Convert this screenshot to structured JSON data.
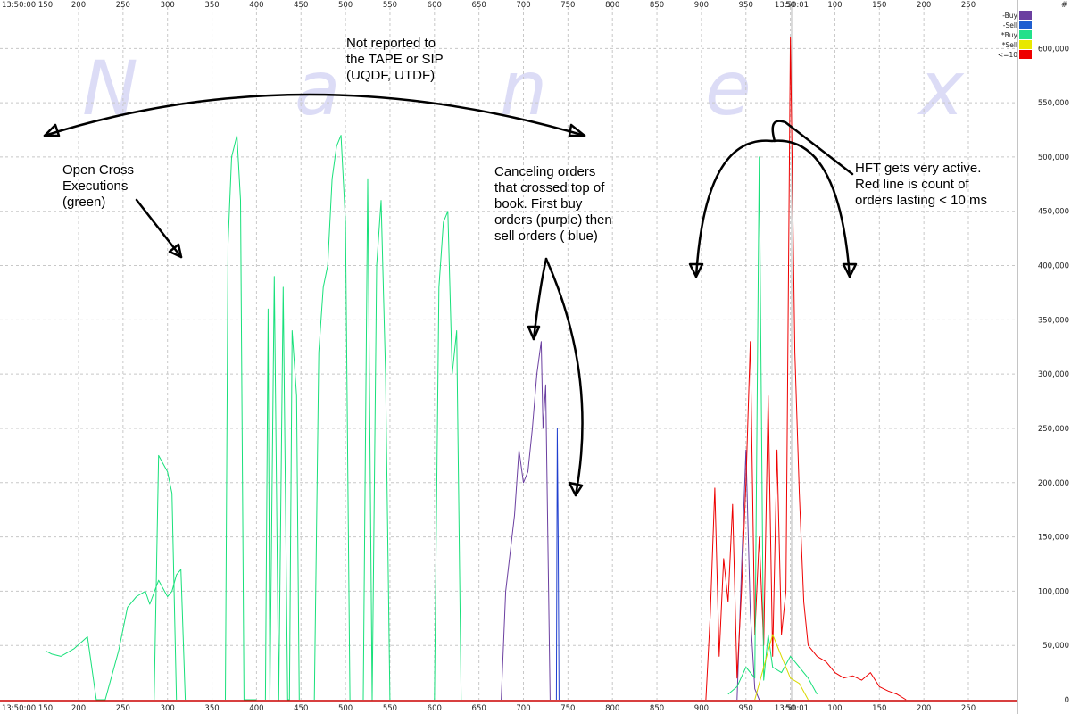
{
  "chart_data": {
    "type": "line",
    "watermark": [
      "N",
      "a",
      "n",
      "e",
      "x"
    ],
    "time_corner_left": "13:50:00.150",
    "time_center": "13:50:01",
    "x_ticks": [
      "200",
      "250",
      "300",
      "350",
      "400",
      "450",
      "500",
      "550",
      "600",
      "650",
      "700",
      "750",
      "800",
      "850",
      "900",
      "950",
      "50",
      "100",
      "150",
      "200",
      "250"
    ],
    "y_axis_header": "#",
    "ylim": [
      0,
      620000
    ],
    "y_ticks": [
      {
        "v": 0,
        "label": "0"
      },
      {
        "v": 50000,
        "label": "50,000"
      },
      {
        "v": 100000,
        "label": "100,000"
      },
      {
        "v": 150000,
        "label": "150,000"
      },
      {
        "v": 200000,
        "label": "200,000"
      },
      {
        "v": 250000,
        "label": "250,000"
      },
      {
        "v": 300000,
        "label": "300,000"
      },
      {
        "v": 350000,
        "label": "350,000"
      },
      {
        "v": 400000,
        "label": "400,000"
      },
      {
        "v": 450000,
        "label": "450,000"
      },
      {
        "v": 500000,
        "label": "500,000"
      },
      {
        "v": 550000,
        "label": "550,000"
      },
      {
        "v": 600000,
        "label": "600,000"
      }
    ],
    "legend": [
      {
        "label": "-Buy",
        "color": "#6b3fa0"
      },
      {
        "label": "-Sell",
        "color": "#1f5fd0"
      },
      {
        "label": "*Buy",
        "color": "#22e08a"
      },
      {
        "label": "*Sell",
        "color": "#e8e800"
      },
      {
        "label": "<=10",
        "color": "#ee0000"
      }
    ],
    "grid": true,
    "legend_position": "top-right",
    "colors": {
      "green": "#18e07a",
      "purple": "#6b3fa0",
      "blue": "#1f3fcf",
      "red": "#ee0000",
      "yellow": "#d8d800",
      "grid": "#c8c8c8"
    },
    "series": [
      {
        "color_key": "green",
        "x": [
          163,
          170,
          180,
          195,
          210,
          220,
          230,
          245,
          255,
          265,
          275,
          280,
          290,
          300,
          305,
          310,
          315,
          320
        ],
        "y": [
          45000,
          42000,
          40000,
          47000,
          58000,
          0,
          0,
          45000,
          85000,
          95000,
          100000,
          88000,
          110000,
          95000,
          100000,
          115000,
          120000,
          0
        ]
      },
      {
        "color_key": "green",
        "x": [
          285,
          290,
          300,
          305,
          310
        ],
        "y": [
          0,
          225000,
          210000,
          190000,
          0
        ]
      },
      {
        "color_key": "green",
        "x": [
          365,
          368,
          372,
          378,
          382,
          386,
          388,
          392,
          396,
          400
        ],
        "y": [
          0,
          420000,
          500000,
          520000,
          460000,
          0,
          0,
          0,
          0,
          0
        ]
      },
      {
        "color_key": "green",
        "x": [
          410,
          413,
          415,
          420,
          425,
          430,
          435,
          437,
          440,
          445,
          448
        ],
        "y": [
          0,
          360000,
          0,
          390000,
          0,
          380000,
          0,
          0,
          340000,
          280000,
          0
        ]
      },
      {
        "color_key": "green",
        "x": [
          465,
          470,
          475,
          480,
          485,
          490,
          495,
          500,
          505
        ],
        "y": [
          0,
          320000,
          380000,
          400000,
          480000,
          510000,
          520000,
          440000,
          0
        ]
      },
      {
        "color_key": "green",
        "x": [
          520,
          525,
          530,
          535,
          540,
          545,
          550
        ],
        "y": [
          0,
          480000,
          0,
          400000,
          460000,
          300000,
          0
        ]
      },
      {
        "color_key": "green",
        "x": [
          600,
          605,
          610,
          615,
          620,
          625,
          630
        ],
        "y": [
          0,
          380000,
          440000,
          450000,
          300000,
          340000,
          0
        ]
      },
      {
        "color_key": "purple",
        "x": [
          675,
          680,
          690,
          695,
          700,
          705,
          710,
          715,
          720,
          722,
          725,
          730
        ],
        "y": [
          0,
          100000,
          170000,
          230000,
          200000,
          210000,
          250000,
          300000,
          330000,
          250000,
          290000,
          0
        ]
      },
      {
        "color_key": "blue",
        "x": [
          737,
          738,
          739,
          740
        ],
        "y": [
          0,
          250000,
          150000,
          0
        ]
      },
      {
        "color_key": "purple",
        "x": [
          940,
          945,
          950,
          955,
          960,
          965
        ],
        "y": [
          0,
          120000,
          230000,
          80000,
          10000,
          0
        ]
      },
      {
        "color_key": "red",
        "x": [
          905,
          910,
          915,
          920,
          925,
          930,
          935,
          940,
          945,
          950,
          955,
          960,
          965,
          970,
          975,
          980,
          985,
          990,
          995,
          1000,
          1005,
          1010,
          1015,
          1020,
          1030,
          1040,
          1050,
          1060,
          1070,
          1080,
          1090,
          1100,
          1110,
          1120,
          1130
        ],
        "y": [
          0,
          80000,
          195000,
          40000,
          130000,
          90000,
          180000,
          20000,
          100000,
          200000,
          330000,
          60000,
          150000,
          50000,
          280000,
          40000,
          230000,
          60000,
          100000,
          610000,
          320000,
          190000,
          90000,
          50000,
          40000,
          35000,
          25000,
          20000,
          22000,
          18000,
          25000,
          12000,
          8000,
          5000,
          0
        ]
      },
      {
        "color_key": "green",
        "x": [
          930,
          940,
          950,
          960,
          965,
          970,
          975,
          980,
          990,
          1000,
          1010,
          1020,
          1030
        ],
        "y": [
          5000,
          12000,
          30000,
          20000,
          500000,
          18000,
          60000,
          30000,
          25000,
          40000,
          30000,
          20000,
          5000
        ]
      },
      {
        "color_key": "yellow",
        "x": [
          960,
          970,
          980,
          990,
          1000,
          1010,
          1020
        ],
        "y": [
          0,
          30000,
          60000,
          40000,
          20000,
          15000,
          0
        ]
      }
    ]
  },
  "annotations": {
    "not_reported": [
      "Not reported to",
      "the TAPE or SIP",
      "(UQDF, UTDF)"
    ],
    "open_cross": [
      "Open Cross",
      "Executions",
      "(green)"
    ],
    "canceling": [
      "Canceling orders",
      "that crossed top of",
      "book. First buy",
      "orders (purple) then",
      "sell orders ( blue)"
    ],
    "hft": [
      "HFT gets very active.",
      "Red line is count of",
      "orders lasting < 10 ms"
    ]
  }
}
